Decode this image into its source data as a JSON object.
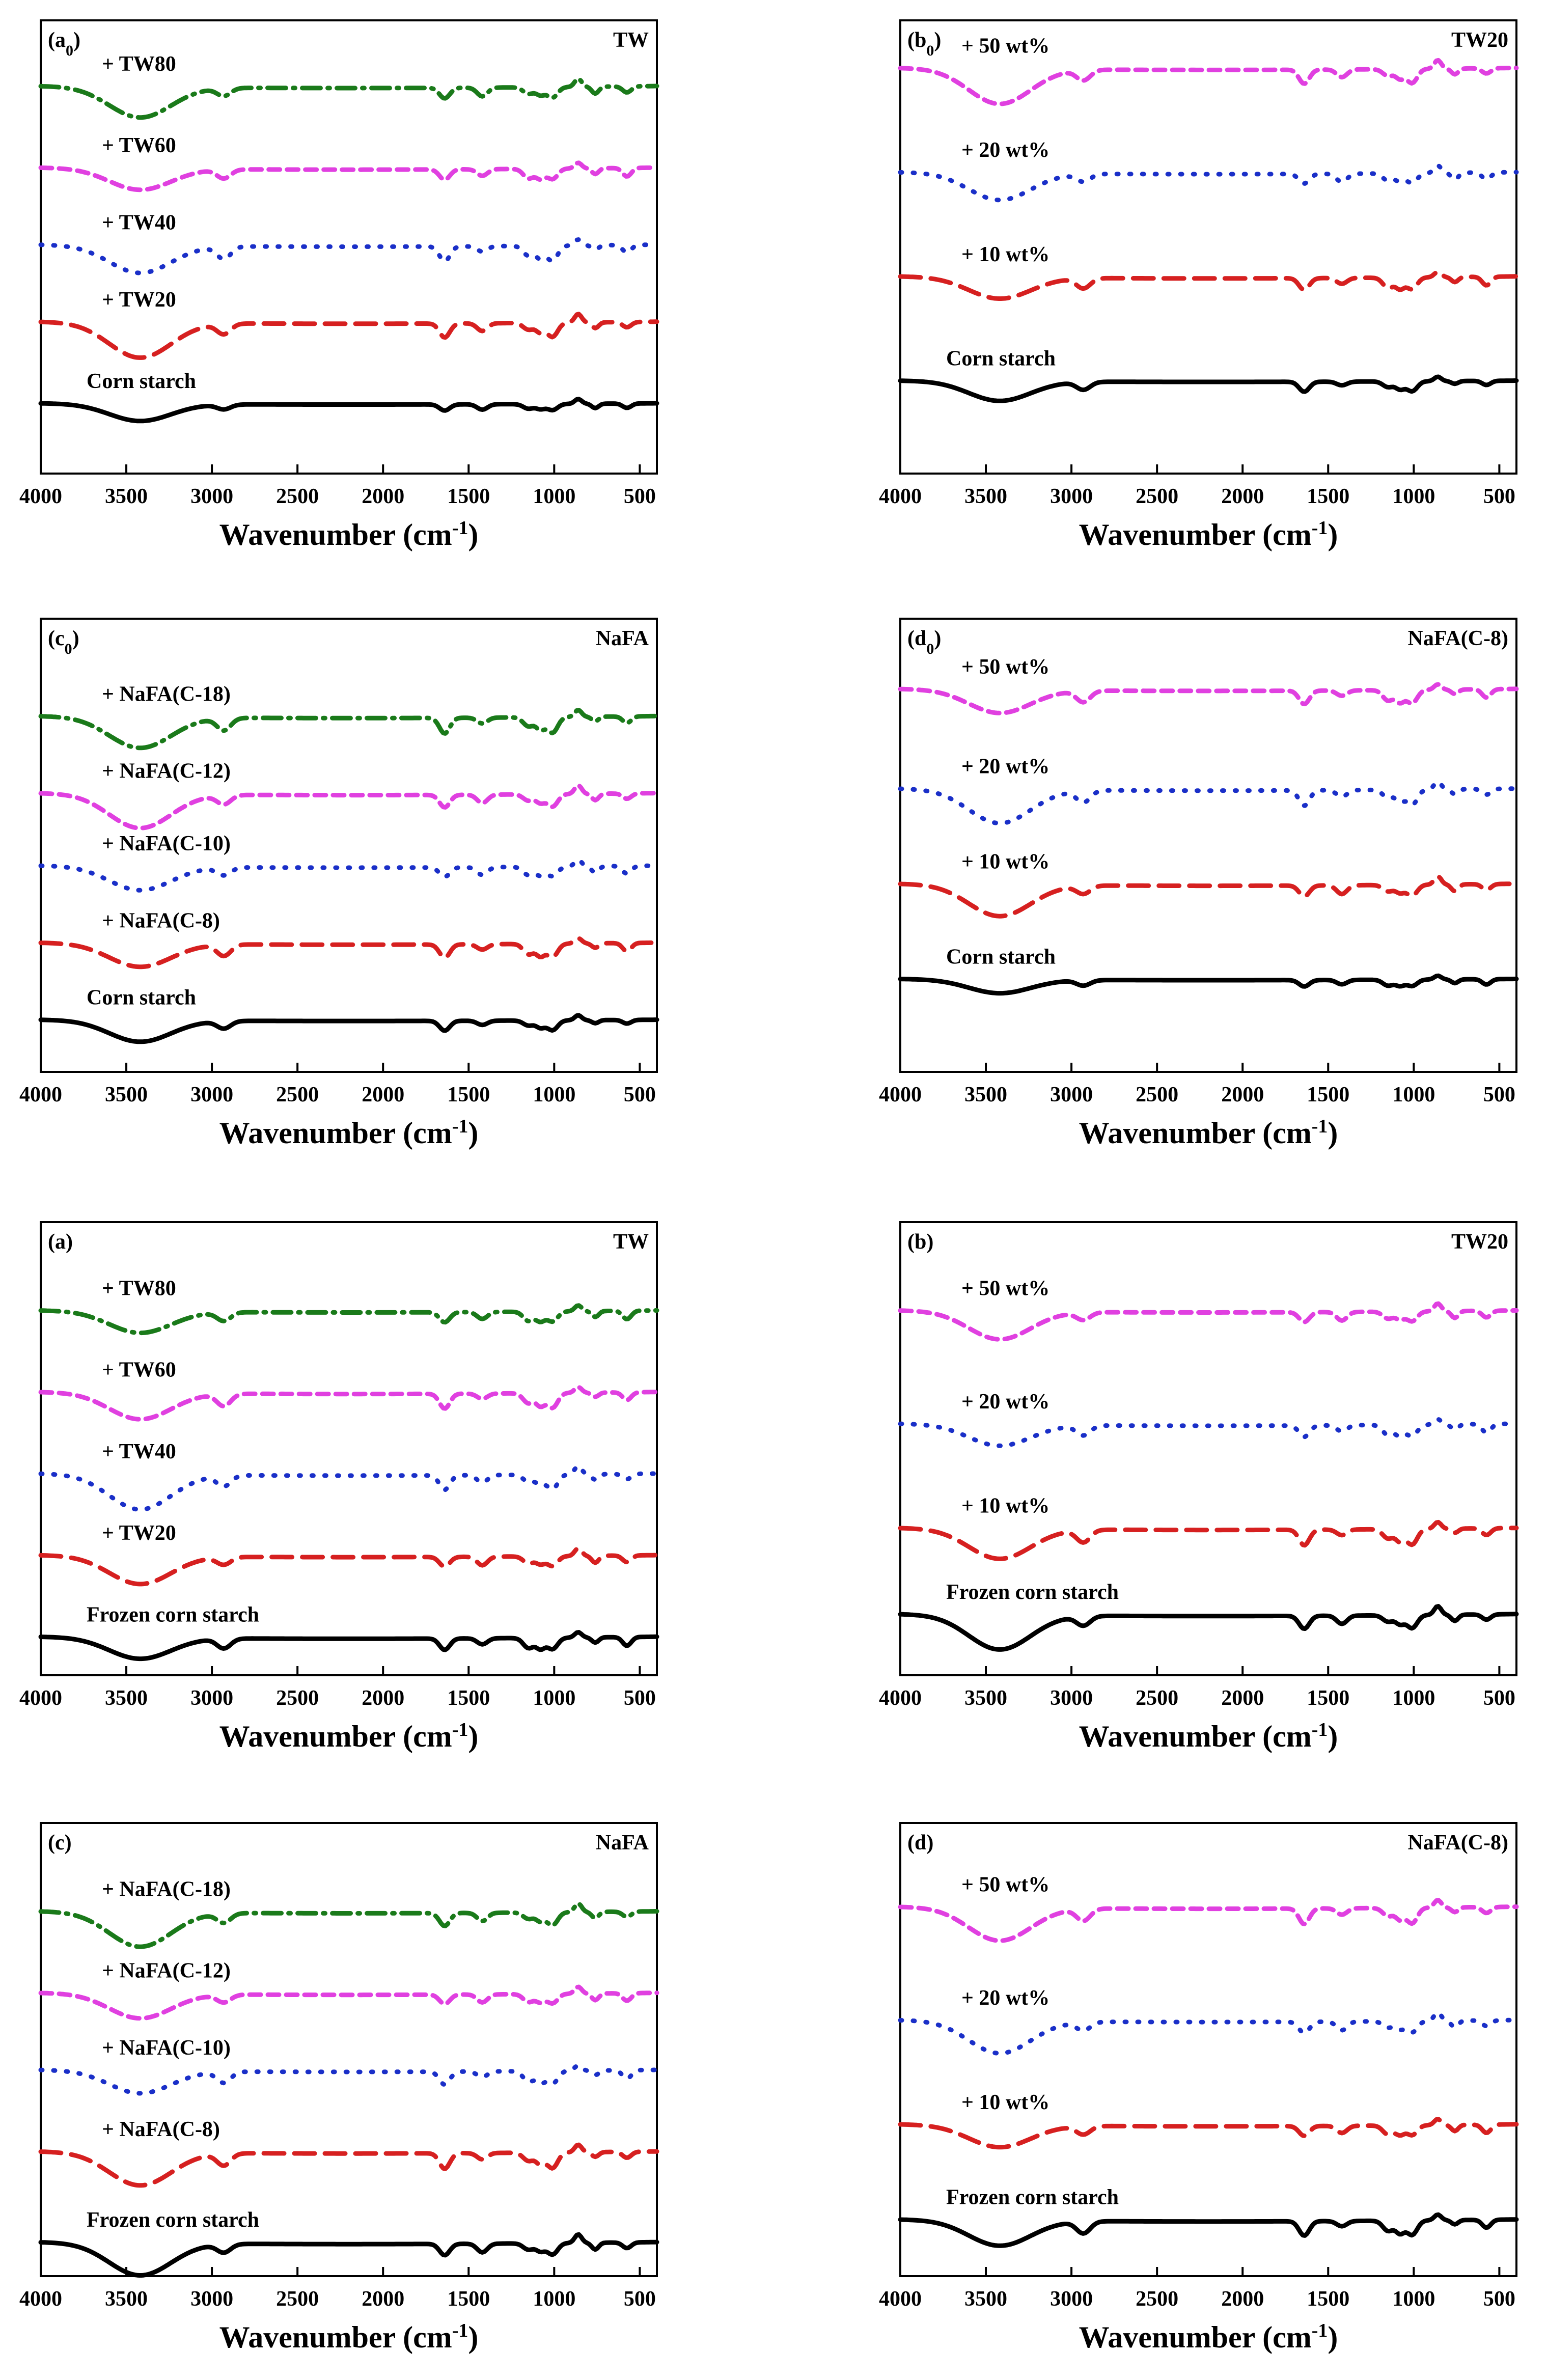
{
  "figure": {
    "description_none": ""
  },
  "xlabel_text": "Wavenumber (cm",
  "xlabel_sup": "-1",
  "xlabel_close": ")",
  "chart_data": [
    {
      "id": "a0",
      "type": "line",
      "panel_label": "(a",
      "panel_sub": "0",
      "title": "TW",
      "xlim": [
        4000,
        400
      ],
      "ticks": [
        "4000",
        "3500",
        "3000",
        "2500",
        "2000",
        "1500",
        "1000",
        "500"
      ],
      "series": [
        {
          "name": "+ TW80",
          "color": "#1a7a1a",
          "dash": "dashdot"
        },
        {
          "name": "+ TW60",
          "color": "#e040e0",
          "dash": "dash-short"
        },
        {
          "name": "+ TW40",
          "color": "#1a2fc8",
          "dash": "dot"
        },
        {
          "name": "+ TW20",
          "color": "#d62020",
          "dash": "dash"
        },
        {
          "name": "Corn starch",
          "color": "#000000",
          "dash": "solid"
        }
      ]
    },
    {
      "id": "b0",
      "type": "line",
      "panel_label": "(b",
      "panel_sub": "0",
      "title": "TW20",
      "xlim": [
        4000,
        400
      ],
      "ticks": [
        "4000",
        "3500",
        "3000",
        "2500",
        "2000",
        "1500",
        "1000",
        "500"
      ],
      "series": [
        {
          "name": "+ 50 wt%",
          "color": "#e040e0",
          "dash": "dash-short"
        },
        {
          "name": "+ 20 wt%",
          "color": "#1a2fc8",
          "dash": "dot"
        },
        {
          "name": "+ 10 wt%",
          "color": "#d62020",
          "dash": "dash"
        },
        {
          "name": "Corn starch",
          "color": "#000000",
          "dash": "solid"
        }
      ]
    },
    {
      "id": "c0",
      "type": "line",
      "panel_label": "(c",
      "panel_sub": "0",
      "title": "NaFA",
      "xlim": [
        4000,
        400
      ],
      "ticks": [
        "4000",
        "3500",
        "3000",
        "2500",
        "2000",
        "1500",
        "1000",
        "500"
      ],
      "series": [
        {
          "name": "+ NaFA(C-18)",
          "color": "#1a7a1a",
          "dash": "dashdot"
        },
        {
          "name": "+ NaFA(C-12)",
          "color": "#e040e0",
          "dash": "dash-short"
        },
        {
          "name": "+ NaFA(C-10)",
          "color": "#1a2fc8",
          "dash": "dot"
        },
        {
          "name": "+ NaFA(C-8)",
          "color": "#d62020",
          "dash": "dash"
        },
        {
          "name": "Corn starch",
          "color": "#000000",
          "dash": "solid"
        }
      ]
    },
    {
      "id": "d0",
      "type": "line",
      "panel_label": "(d",
      "panel_sub": "0",
      "title": "NaFA(C-8)",
      "xlim": [
        4000,
        400
      ],
      "ticks": [
        "4000",
        "3500",
        "3000",
        "2500",
        "2000",
        "1500",
        "1000",
        "500"
      ],
      "series": [
        {
          "name": "+ 50 wt%",
          "color": "#e040e0",
          "dash": "dash-short"
        },
        {
          "name": "+ 20 wt%",
          "color": "#1a2fc8",
          "dash": "dot"
        },
        {
          "name": "+ 10 wt%",
          "color": "#d62020",
          "dash": "dash"
        },
        {
          "name": "Corn starch",
          "color": "#000000",
          "dash": "solid"
        }
      ]
    },
    {
      "id": "a",
      "type": "line",
      "panel_label": "(a)",
      "panel_sub": "",
      "title": "TW",
      "xlim": [
        4000,
        400
      ],
      "ticks": [
        "4000",
        "3500",
        "3000",
        "2500",
        "2000",
        "1500",
        "1000",
        "500"
      ],
      "series": [
        {
          "name": "+ TW80",
          "color": "#1a7a1a",
          "dash": "dashdot"
        },
        {
          "name": "+ TW60",
          "color": "#e040e0",
          "dash": "dash-short"
        },
        {
          "name": "+ TW40",
          "color": "#1a2fc8",
          "dash": "dot"
        },
        {
          "name": "+ TW20",
          "color": "#d62020",
          "dash": "dash"
        },
        {
          "name": "Frozen corn starch",
          "color": "#000000",
          "dash": "solid"
        }
      ]
    },
    {
      "id": "b",
      "type": "line",
      "panel_label": "(b)",
      "panel_sub": "",
      "title": "TW20",
      "xlim": [
        4000,
        400
      ],
      "ticks": [
        "4000",
        "3500",
        "3000",
        "2500",
        "2000",
        "1500",
        "1000",
        "500"
      ],
      "series": [
        {
          "name": "+ 50 wt%",
          "color": "#e040e0",
          "dash": "dash-short"
        },
        {
          "name": "+ 20 wt%",
          "color": "#1a2fc8",
          "dash": "dot"
        },
        {
          "name": "+ 10 wt%",
          "color": "#d62020",
          "dash": "dash"
        },
        {
          "name": "Frozen corn starch",
          "color": "#000000",
          "dash": "solid"
        }
      ]
    },
    {
      "id": "c",
      "type": "line",
      "panel_label": "(c)",
      "panel_sub": "",
      "title": "NaFA",
      "xlim": [
        4000,
        400
      ],
      "ticks": [
        "4000",
        "3500",
        "3000",
        "2500",
        "2000",
        "1500",
        "1000",
        "500"
      ],
      "series": [
        {
          "name": "+ NaFA(C-18)",
          "color": "#1a7a1a",
          "dash": "dashdot"
        },
        {
          "name": "+ NaFA(C-12)",
          "color": "#e040e0",
          "dash": "dash-short"
        },
        {
          "name": "+ NaFA(C-10)",
          "color": "#1a2fc8",
          "dash": "dot"
        },
        {
          "name": "+ NaFA(C-8)",
          "color": "#d62020",
          "dash": "dash"
        },
        {
          "name": "Frozen corn starch",
          "color": "#000000",
          "dash": "solid"
        }
      ]
    },
    {
      "id": "d",
      "type": "line",
      "panel_label": "(d)",
      "panel_sub": "",
      "title": "NaFA(C-8)",
      "xlim": [
        4000,
        400
      ],
      "ticks": [
        "4000",
        "3500",
        "3000",
        "2500",
        "2000",
        "1500",
        "1000",
        "500"
      ],
      "series": [
        {
          "name": "+ 50 wt%",
          "color": "#e040e0",
          "dash": "dash-short"
        },
        {
          "name": "+ 20 wt%",
          "color": "#1a2fc8",
          "dash": "dot"
        },
        {
          "name": "+ 10 wt%",
          "color": "#d62020",
          "dash": "dash"
        },
        {
          "name": "Frozen corn starch",
          "color": "#000000",
          "dash": "solid"
        }
      ]
    }
  ]
}
